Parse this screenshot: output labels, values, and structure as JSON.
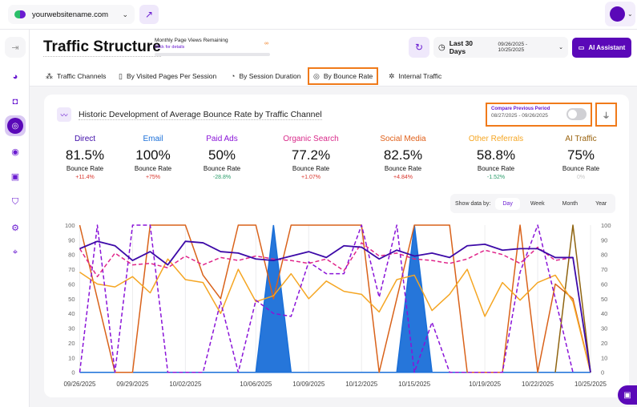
{
  "topbar": {
    "site": "yourwebsitename.com",
    "site_icon": "globe-icon",
    "external_icon": "external-link-icon"
  },
  "header": {
    "title": "Traffic Structure",
    "page_views_label": "Monthly Page Views Remaining",
    "page_views_link": "Click for details",
    "page_views_value": "∞",
    "date_label": "Last 30 Days",
    "date_range": "09/26/2025 - 10/25/2025",
    "ai_button": "AI Assistant"
  },
  "tabs": [
    {
      "label": "Traffic Channels",
      "icon": "network-icon"
    },
    {
      "label": "By Visited Pages Per Session",
      "icon": "pages-icon"
    },
    {
      "label": "By Session Duration",
      "icon": "timer-icon"
    },
    {
      "label": "By Bounce Rate",
      "icon": "bounce-icon",
      "active": true
    },
    {
      "label": "Internal Traffic",
      "icon": "internal-icon"
    }
  ],
  "card": {
    "title": "Historic Development of Average Bounce Rate by Traffic Channel",
    "compare_label": "Compare Previous Period",
    "compare_range": "08/27/2025 - 09/26/2025",
    "compare_enabled": false
  },
  "stats": [
    {
      "name": "Direct",
      "value": "81.5%",
      "label": "Bounce Rate",
      "change": "+11.4%",
      "color": "#3d0aa8",
      "change_color": "#d9342b"
    },
    {
      "name": "Email",
      "value": "100%",
      "label": "Bounce Rate",
      "change": "+75%",
      "color": "#1a6fd8",
      "change_color": "#d9342b"
    },
    {
      "name": "Paid Ads",
      "value": "50%",
      "label": "Bounce Rate",
      "change": "-28.8%",
      "color": "#8a14d8",
      "change_color": "#2a9d6a"
    },
    {
      "name": "Organic Search",
      "value": "77.2%",
      "label": "Bounce Rate",
      "change": "+1.07%",
      "color": "#d92a8a",
      "change_color": "#d9342b"
    },
    {
      "name": "Social Media",
      "value": "82.5%",
      "label": "Bounce Rate",
      "change": "+4.84%",
      "color": "#e0601a",
      "change_color": "#d9342b"
    },
    {
      "name": "Other Referrals",
      "value": "58.8%",
      "label": "Bounce Rate",
      "change": "-1.52%",
      "color": "#f5a623",
      "change_color": "#2a9d6a"
    },
    {
      "name": "AI Traffic",
      "value": "75%",
      "label": "Bounce Rate",
      "change": "0%",
      "color": "#9a6410",
      "change_color": "#c8c8c8"
    }
  ],
  "showby": {
    "label": "Show data by:",
    "options": [
      "Day",
      "Week",
      "Month",
      "Year"
    ],
    "selected": "Day"
  },
  "chart_data": {
    "type": "line",
    "x_start": "09/26/2025",
    "x_end": "10/25/2025",
    "xtick_labels": [
      "09/26/2025",
      "09/29/2025",
      "10/02/2025",
      "10/06/2025",
      "10/09/2025",
      "10/12/2025",
      "10/15/2025",
      "10/19/2025",
      "10/22/2025",
      "10/25/2025"
    ],
    "xtick_days": [
      0,
      3,
      6,
      10,
      13,
      16,
      19,
      23,
      26,
      29
    ],
    "ylim": [
      0,
      100
    ],
    "yticks": [
      0,
      10,
      20,
      30,
      40,
      50,
      60,
      70,
      80,
      90,
      100
    ],
    "y_axes": [
      "left",
      "right"
    ],
    "grid": "vertical",
    "series": [
      {
        "name": "Email",
        "color": "#1a6fd8",
        "style": "area",
        "values": [
          0,
          0,
          0,
          0,
          0,
          0,
          0,
          0,
          0,
          0,
          0,
          100,
          0,
          0,
          0,
          0,
          0,
          0,
          0,
          100,
          0,
          0,
          0,
          0,
          0,
          0,
          0,
          0,
          0,
          0
        ]
      },
      {
        "name": "Social Media",
        "color": "#d9621a",
        "style": "solid",
        "values": [
          100,
          50,
          0,
          0,
          100,
          100,
          100,
          66,
          50,
          100,
          100,
          50,
          100,
          100,
          100,
          100,
          100,
          0,
          50,
          100,
          100,
          100,
          0,
          0,
          0,
          100,
          0,
          60,
          50,
          0
        ]
      },
      {
        "name": "AI Traffic",
        "color": "#8f6410",
        "style": "solid",
        "values": [
          null,
          null,
          null,
          null,
          null,
          null,
          null,
          null,
          null,
          null,
          null,
          null,
          null,
          null,
          null,
          null,
          null,
          null,
          null,
          null,
          null,
          null,
          null,
          null,
          null,
          null,
          null,
          0,
          100,
          0
        ]
      },
      {
        "name": "Other Referrals",
        "color": "#f5a623",
        "style": "solid",
        "values": [
          68,
          60,
          58,
          65,
          54,
          77,
          63,
          61,
          40,
          70,
          48,
          52,
          67,
          50,
          62,
          55,
          53,
          41,
          63,
          66,
          42,
          53,
          70,
          38,
          61,
          49,
          61,
          66,
          48,
          0
        ]
      },
      {
        "name": "Paid Ads",
        "color": "#8a14d8",
        "style": "dashed",
        "values": [
          0,
          100,
          0,
          100,
          100,
          0,
          0,
          0,
          48,
          0,
          49,
          40,
          38,
          75,
          67,
          67,
          100,
          51,
          100,
          0,
          34,
          0,
          0,
          0,
          0,
          68,
          100,
          50,
          0,
          null
        ]
      },
      {
        "name": "Organic Search",
        "color": "#e0258a",
        "style": "dashed",
        "values": [
          84,
          65,
          81,
          73,
          74,
          71,
          79,
          73,
          78,
          76,
          79,
          77,
          76,
          74,
          77,
          69,
          88,
          79,
          81,
          77,
          76,
          74,
          77,
          83,
          80,
          74,
          85,
          76,
          78,
          null
        ]
      },
      {
        "name": "Direct",
        "color": "#3d0aa8",
        "style": "solid",
        "values": [
          84,
          89,
          86,
          76,
          82,
          73,
          89,
          88,
          82,
          81,
          77,
          76,
          79,
          82,
          78,
          86,
          85,
          77,
          83,
          79,
          81,
          78,
          86,
          87,
          83,
          84,
          84,
          78,
          78,
          0
        ]
      }
    ]
  }
}
